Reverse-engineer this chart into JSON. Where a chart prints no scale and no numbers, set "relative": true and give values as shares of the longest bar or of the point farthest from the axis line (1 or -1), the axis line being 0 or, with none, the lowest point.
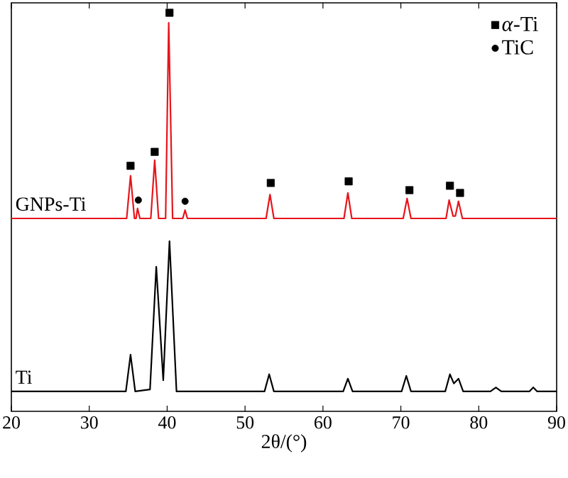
{
  "chart_data": {
    "type": "line",
    "relative": true,
    "xlabel": "2θ/(°)",
    "xlim": [
      20,
      90
    ],
    "xticks": [
      20,
      30,
      40,
      50,
      60,
      70,
      80,
      90
    ],
    "legend": "top right",
    "grid": false,
    "series": [
      {
        "name": "GNPs-Ti",
        "color": "#e8141b",
        "x": [
          20,
          34.8,
          35.3,
          35.8,
          36.0,
          36.2,
          36.5,
          37.9,
          38.4,
          38.9,
          39.8,
          40.2,
          40.7,
          42.0,
          42.3,
          42.6,
          52.7,
          53.2,
          53.7,
          62.7,
          63.2,
          63.7,
          70.3,
          70.8,
          71.3,
          75.8,
          76.2,
          76.7,
          77.0,
          77.4,
          77.9,
          90
        ],
        "values": [
          0.484,
          0.484,
          0.591,
          0.484,
          0.484,
          0.509,
          0.484,
          0.484,
          0.63,
          0.484,
          0.484,
          0.975,
          0.484,
          0.484,
          0.505,
          0.484,
          0.484,
          0.544,
          0.484,
          0.484,
          0.548,
          0.484,
          0.484,
          0.534,
          0.484,
          0.484,
          0.53,
          0.49,
          0.49,
          0.527,
          0.484,
          0.484
        ]
      },
      {
        "name": "Ti",
        "color": "#000000",
        "x": [
          20,
          34.7,
          35.3,
          35.9,
          37.8,
          38.6,
          39.5,
          40.3,
          41.2,
          52.5,
          53.1,
          53.7,
          62.6,
          63.2,
          63.8,
          70.1,
          70.7,
          71.3,
          75.7,
          76.3,
          76.8,
          77.4,
          78.0,
          81.5,
          82.2,
          82.9,
          86.5,
          87.0,
          87.5,
          90
        ],
        "values": [
          0.05,
          0.05,
          0.142,
          0.05,
          0.055,
          0.363,
          0.078,
          0.427,
          0.05,
          0.05,
          0.093,
          0.05,
          0.05,
          0.082,
          0.05,
          0.05,
          0.089,
          0.05,
          0.05,
          0.093,
          0.07,
          0.082,
          0.05,
          0.05,
          0.06,
          0.05,
          0.05,
          0.06,
          0.05,
          0.05
        ]
      },
      {
        "name": "*α*-Ti",
        "type": "scatter",
        "marker": "square",
        "color": "#000000",
        "x": [
          35.3,
          38.4,
          40.3,
          53.3,
          63.3,
          71.1,
          76.3,
          77.6
        ],
        "values": [
          0.616,
          0.651,
          1.0,
          0.573,
          0.577,
          0.555,
          0.566,
          0.548
        ]
      },
      {
        "name": "TiC",
        "type": "scatter",
        "marker": "circle",
        "color": "#000000",
        "x": [
          36.3,
          42.3
        ],
        "values": [
          0.53,
          0.527
        ]
      }
    ]
  }
}
